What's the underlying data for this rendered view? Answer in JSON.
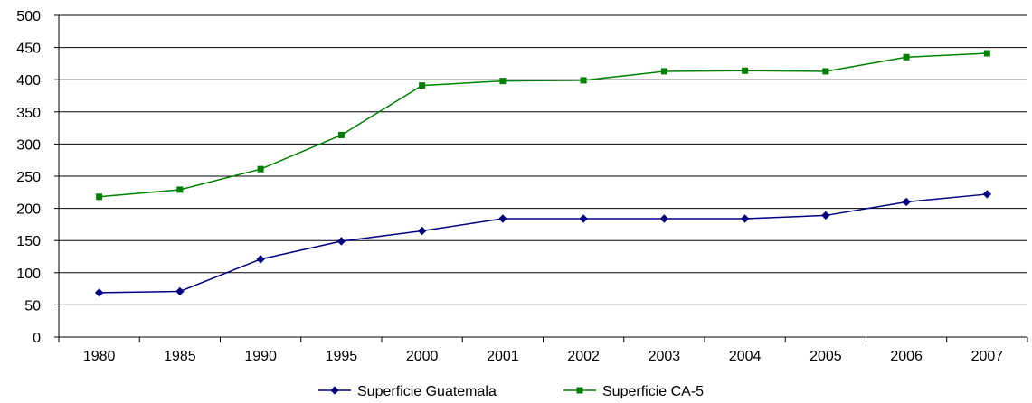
{
  "chart_data": {
    "type": "line",
    "title": "",
    "xlabel": "",
    "ylabel": "",
    "categories": [
      "1980",
      "1985",
      "1990",
      "1995",
      "2000",
      "2001",
      "2002",
      "2003",
      "2004",
      "2005",
      "2006",
      "2007"
    ],
    "ylim": [
      0,
      500
    ],
    "yticks": [
      0,
      50,
      100,
      150,
      200,
      250,
      300,
      350,
      400,
      450,
      500
    ],
    "grid": "horizontal",
    "legend_position": "bottom",
    "series": [
      {
        "name": "Superficie Guatemala",
        "color": "#000080",
        "marker": "diamond",
        "values": [
          69,
          71,
          121,
          149,
          165,
          184,
          184,
          184,
          184,
          189,
          210,
          222
        ]
      },
      {
        "name": "Superficie CA-5",
        "color": "#008000",
        "marker": "square",
        "values": [
          218,
          229,
          261,
          314,
          391,
          398,
          399,
          413,
          414,
          413,
          435,
          441
        ]
      }
    ]
  }
}
